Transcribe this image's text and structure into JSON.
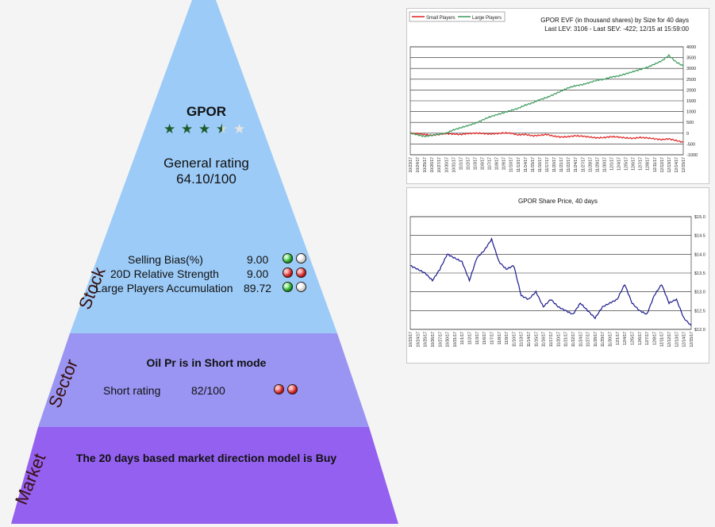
{
  "stock": {
    "side_label": "Stock",
    "ticker": "GPOR",
    "rating_stars": 3.5,
    "general_rating_label": "General rating",
    "general_rating_value": "64.10/100",
    "metrics": [
      {
        "label": "Selling Bias(%)",
        "value": "9.00",
        "lights": [
          "green",
          "white"
        ]
      },
      {
        "label": "20D Relative Strength",
        "value": "9.00",
        "lights": [
          "red",
          "red"
        ]
      },
      {
        "label": "Large Players Accumulation",
        "value": "89.72",
        "lights": [
          "green",
          "white"
        ]
      }
    ]
  },
  "sector": {
    "side_label": "Sector",
    "title": "Oil Pr is in Short mode",
    "rating_label": "Short rating",
    "rating_value": "82/100",
    "lights": [
      "red",
      "red"
    ]
  },
  "market": {
    "side_label": "Market",
    "title": "The 20 days based market direction model is Buy"
  },
  "colors": {
    "stock_band": "#9ccbf7",
    "sector_band": "#9a95f2",
    "market_band": "#9460f0",
    "small_players": "#e02020",
    "large_players": "#3a9a5a",
    "price_line": "#1a1a8c"
  },
  "chart_data": [
    {
      "type": "line",
      "title": "GPOR EVF (in thousand shares) by Size for 40 days",
      "subtitle": "Last LEV: 3106 - Last SEV: -422; 12/15 at 15:59:00",
      "legend": "top-left",
      "grid": true,
      "ylim": [
        -1000,
        4000
      ],
      "yticks": [
        4000,
        3500,
        3000,
        2500,
        2000,
        1500,
        1000,
        500,
        0,
        -500,
        -1000
      ],
      "x": [
        "10/23/17",
        "10/24/17",
        "10/25/17",
        "10/26/17",
        "10/27/17",
        "10/30/17",
        "10/31/17",
        "11/1/17",
        "11/2/17",
        "11/3/17",
        "11/6/17",
        "11/7/17",
        "11/8/17",
        "11/9/17",
        "11/10/17",
        "11/13/17",
        "11/14/17",
        "11/15/17",
        "11/16/17",
        "11/17/17",
        "11/20/17",
        "11/21/17",
        "11/22/17",
        "11/24/17",
        "11/27/17",
        "11/28/17",
        "11/29/17",
        "11/30/17",
        "12/1/17",
        "12/4/17",
        "12/5/17",
        "12/6/17",
        "12/7/17",
        "12/8/17",
        "12/11/17",
        "12/12/17",
        "12/13/17",
        "12/14/17",
        "12/15/17"
      ],
      "series": [
        {
          "name": "Small Players",
          "values": [
            0,
            -20,
            -60,
            -100,
            -60,
            -20,
            -40,
            -60,
            -20,
            0,
            -10,
            -40,
            -20,
            10,
            0,
            -80,
            -60,
            -120,
            -100,
            -60,
            -140,
            -180,
            -160,
            -120,
            -140,
            -180,
            -220,
            -200,
            -160,
            -180,
            -220,
            -240,
            -200,
            -220,
            -260,
            -300,
            -260,
            -340,
            -422
          ]
        },
        {
          "name": "Large Players",
          "values": [
            0,
            -80,
            -150,
            -100,
            -50,
            0,
            150,
            250,
            350,
            450,
            600,
            750,
            850,
            950,
            1050,
            1150,
            1300,
            1400,
            1550,
            1650,
            1800,
            1950,
            2100,
            2200,
            2250,
            2350,
            2450,
            2500,
            2600,
            2650,
            2750,
            2850,
            2950,
            3050,
            3200,
            3350,
            3600,
            3300,
            3106
          ]
        }
      ]
    },
    {
      "type": "line",
      "title": "GPOR Share Price, 40 days",
      "grid": true,
      "ylim": [
        12.0,
        15.0
      ],
      "yticks": [
        "$15.0",
        "$14.5",
        "$14.0",
        "$13.5",
        "$13.0",
        "$12.5",
        "$12.0"
      ],
      "x": [
        "10/23/17",
        "10/24/17",
        "10/25/17",
        "10/26/17",
        "10/27/17",
        "10/30/17",
        "10/31/17",
        "11/1/17",
        "11/2/17",
        "11/3/17",
        "11/6/17",
        "11/7/17",
        "11/8/17",
        "11/9/17",
        "11/10/17",
        "11/13/17",
        "11/14/17",
        "11/15/17",
        "11/16/17",
        "11/17/17",
        "11/20/17",
        "11/21/17",
        "11/22/17",
        "11/24/17",
        "11/27/17",
        "11/28/17",
        "11/29/17",
        "11/30/17",
        "12/1/17",
        "12/4/17",
        "12/5/17",
        "12/6/17",
        "12/7/17",
        "12/8/17",
        "12/11/17",
        "12/12/17",
        "12/13/17",
        "12/14/17",
        "12/15/17"
      ],
      "series": [
        {
          "name": "",
          "values": [
            13.7,
            13.6,
            13.5,
            13.3,
            13.6,
            14.0,
            13.9,
            13.8,
            13.3,
            13.9,
            14.1,
            14.4,
            13.8,
            13.6,
            13.7,
            12.9,
            12.8,
            13.0,
            12.6,
            12.8,
            12.6,
            12.5,
            12.4,
            12.7,
            12.5,
            12.3,
            12.6,
            12.7,
            12.8,
            13.2,
            12.7,
            12.5,
            12.4,
            12.9,
            13.2,
            12.7,
            12.8,
            12.3,
            12.1
          ]
        }
      ]
    }
  ]
}
